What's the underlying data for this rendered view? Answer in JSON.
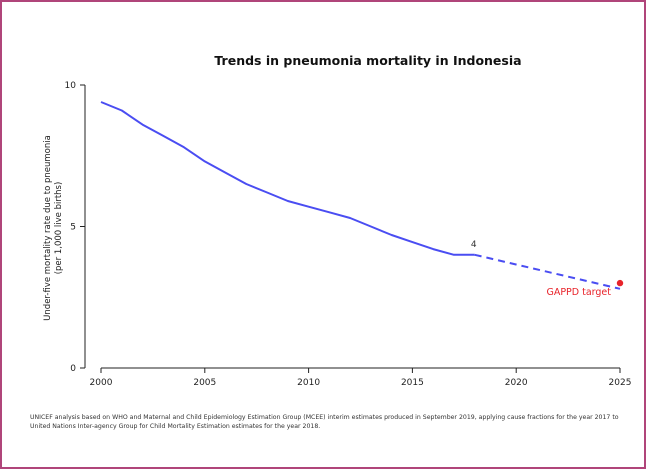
{
  "chart_data": {
    "type": "line",
    "title": "Trends in pneumonia mortality in Indonesia",
    "ylabel_line1": "Under-five mortality rate due to pneumonia",
    "ylabel_line2": "(per 1,000 live births)",
    "xlabel": "",
    "xlim": [
      2000,
      2025
    ],
    "ylim": [
      0,
      10
    ],
    "x_ticks": [
      "2000",
      "2005",
      "2010",
      "2015",
      "2020",
      "2025"
    ],
    "y_ticks": [
      "0",
      "5",
      "10"
    ],
    "grid": false,
    "series": [
      {
        "style": "solid",
        "color": "#4a4df2",
        "x": [
          2000,
          2001,
          2002,
          2003,
          2004,
          2005,
          2006,
          2007,
          2008,
          2009,
          2010,
          2011,
          2012,
          2013,
          2014,
          2015,
          2016,
          2017,
          2018
        ],
        "y": [
          9.4,
          9.1,
          8.6,
          8.2,
          7.8,
          7.3,
          6.9,
          6.5,
          6.2,
          5.9,
          5.7,
          5.5,
          5.3,
          5.0,
          4.7,
          4.45,
          4.2,
          4.0,
          4.0
        ]
      },
      {
        "style": "dashed",
        "color": "#4a4df2",
        "x": [
          2018,
          2025
        ],
        "y": [
          4.0,
          2.8
        ]
      }
    ],
    "annotations": [
      {
        "text": "4",
        "x": 2018,
        "y": 4.0,
        "color": "#333333"
      }
    ],
    "target": {
      "label": "GAPPD target",
      "x": 2025,
      "y": 3.0,
      "color": "#e8232a"
    }
  },
  "footnote": "UNICEF analysis based on WHO and Maternal and Child Epidemiology Estimation Group (MCEE) interim estimates produced in September 2019, applying cause fractions for the year 2017 to United Nations Inter-agency Group for Child Mortality Estimation estimates for the year 2018."
}
